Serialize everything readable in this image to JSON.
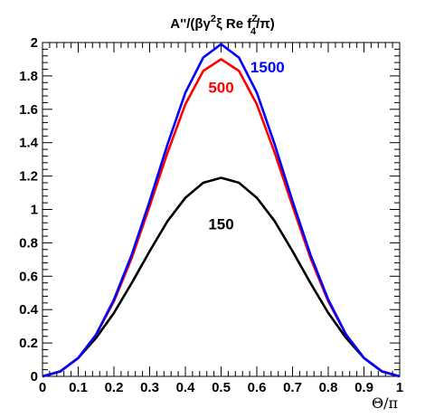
{
  "chart_data": {
    "type": "line",
    "title_parts": {
      "prefix": "A''/(βγ",
      "sup1": "2",
      "mid": "ξ Re f",
      "sup2": "Z",
      "sub": "4",
      "suffix": "/π)"
    },
    "xlabel": "Θ/π",
    "ylabel": "",
    "xlim": [
      0,
      1
    ],
    "ylim": [
      0,
      2
    ],
    "x_ticks": [
      "0",
      "0.1",
      "0.2",
      "0.3",
      "0.4",
      "0.5",
      "0.6",
      "0.7",
      "0.8",
      "0.9",
      "1"
    ],
    "y_ticks": [
      "0",
      "0.2",
      "0.4",
      "0.6",
      "0.8",
      "1",
      "1.2",
      "1.4",
      "1.6",
      "1.8",
      "2"
    ],
    "grid": false,
    "series": [
      {
        "name": "150",
        "color": "#000000",
        "x": [
          0,
          0.05,
          0.1,
          0.15,
          0.2,
          0.25,
          0.3,
          0.35,
          0.4,
          0.45,
          0.5,
          0.55,
          0.6,
          0.65,
          0.7,
          0.75,
          0.8,
          0.85,
          0.9,
          0.95,
          1
        ],
        "values": [
          0,
          0.03,
          0.11,
          0.23,
          0.38,
          0.56,
          0.75,
          0.93,
          1.07,
          1.16,
          1.19,
          1.16,
          1.07,
          0.93,
          0.75,
          0.56,
          0.38,
          0.23,
          0.11,
          0.03,
          0
        ]
      },
      {
        "name": "500",
        "color": "#ff0000",
        "x": [
          0,
          0.05,
          0.1,
          0.15,
          0.2,
          0.25,
          0.3,
          0.35,
          0.4,
          0.45,
          0.5,
          0.55,
          0.6,
          0.65,
          0.7,
          0.75,
          0.8,
          0.85,
          0.9,
          0.95,
          1
        ],
        "values": [
          0,
          0.03,
          0.11,
          0.25,
          0.45,
          0.71,
          1.02,
          1.34,
          1.63,
          1.83,
          1.9,
          1.83,
          1.63,
          1.34,
          1.02,
          0.71,
          0.45,
          0.25,
          0.11,
          0.03,
          0
        ]
      },
      {
        "name": "1500",
        "color": "#0000ff",
        "x": [
          0,
          0.05,
          0.1,
          0.15,
          0.2,
          0.25,
          0.3,
          0.35,
          0.4,
          0.45,
          0.5,
          0.55,
          0.6,
          0.65,
          0.7,
          0.75,
          0.8,
          0.85,
          0.9,
          0.95,
          1
        ],
        "values": [
          0,
          0.03,
          0.11,
          0.25,
          0.46,
          0.73,
          1.05,
          1.39,
          1.7,
          1.91,
          1.99,
          1.91,
          1.7,
          1.39,
          1.05,
          0.73,
          0.46,
          0.25,
          0.11,
          0.03,
          0
        ]
      }
    ],
    "annotations": [
      {
        "text": "1500",
        "color": "#0000ff",
        "x": 0.63,
        "y": 1.82
      },
      {
        "text": "500",
        "color": "#ff0000",
        "x": 0.5,
        "y": 1.7
      },
      {
        "text": "150",
        "color": "#000000",
        "x": 0.5,
        "y": 0.88
      }
    ]
  }
}
